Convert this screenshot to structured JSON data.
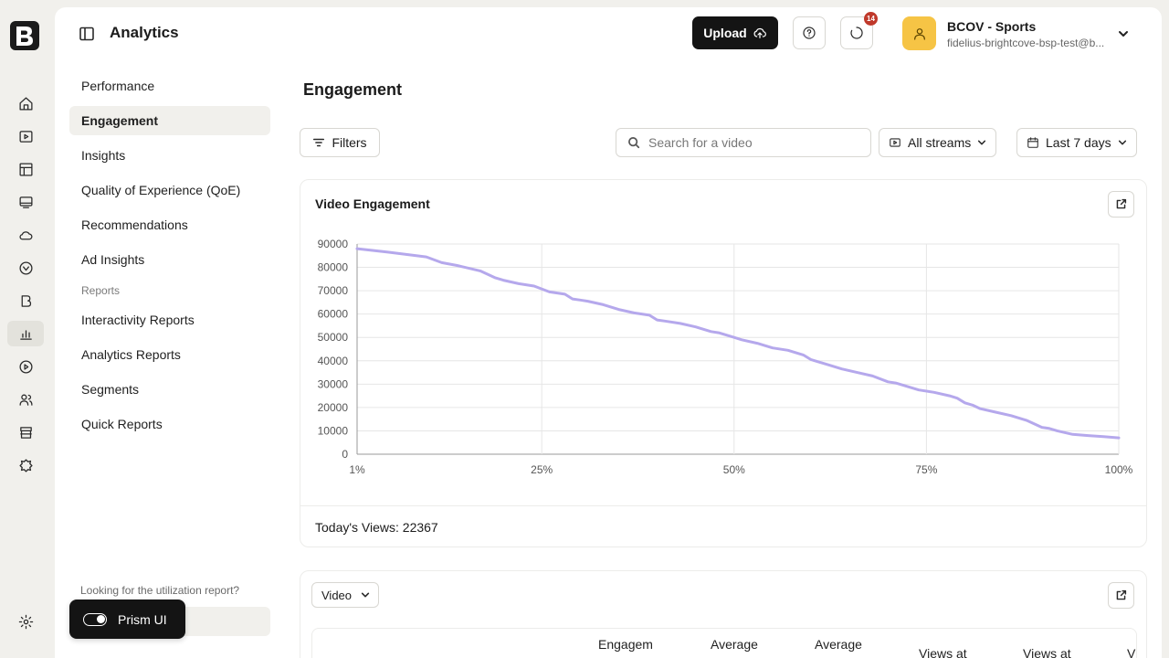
{
  "app": {
    "title": "Analytics"
  },
  "header": {
    "upload_label": "Upload",
    "notification_count": "14",
    "account": {
      "name": "BCOV - Sports",
      "email": "fidelius-brightcove-bsp-test@b..."
    }
  },
  "rail": {
    "icons": [
      "home-icon",
      "video-icon",
      "layout-icon",
      "player-icon",
      "cloud-icon",
      "live-icon",
      "brightcove-icon",
      "analytics-icon",
      "play-circle-icon",
      "users-icon",
      "store-icon",
      "puzzle-icon",
      "settings-icon"
    ],
    "active": "analytics-icon"
  },
  "subnav": {
    "items": [
      "Performance",
      "Engagement",
      "Insights",
      "Quality of Experience (QoE)",
      "Recommendations",
      "Ad Insights"
    ],
    "section_label": "Reports",
    "report_items": [
      "Interactivity Reports",
      "Analytics Reports",
      "Segments",
      "Quick Reports"
    ],
    "active": "Engagement",
    "utilization_text": "Looking for the utilization report?",
    "prism_label": "Prism UI"
  },
  "main": {
    "page_title": "Engagement",
    "filters_label": "Filters",
    "search_placeholder": "Search for a video",
    "streams_label": "All streams",
    "date_label": "Last 7 days",
    "card_title": "Video Engagement",
    "todays_views": "Today's Views: 22367",
    "video_select_label": "Video",
    "table_headers": [
      "Engagem",
      "Average",
      "Average",
      "Views at",
      "Views at",
      "V"
    ]
  },
  "colors": {
    "line": "#b5a8ec",
    "accent": "#141414",
    "avatar": "#f6c445",
    "badge": "#c0392b"
  },
  "chart_data": {
    "type": "line",
    "title": "Video Engagement",
    "xlabel": "",
    "ylabel": "",
    "x_ticks": [
      "1%",
      "25%",
      "50%",
      "75%",
      "100%"
    ],
    "y_ticks": [
      0,
      10000,
      20000,
      30000,
      40000,
      50000,
      60000,
      70000,
      80000,
      90000
    ],
    "ylim": [
      0,
      90000
    ],
    "xlim": [
      1,
      100
    ],
    "grid": true,
    "series": [
      {
        "x": [
          1,
          5,
          10,
          12,
          14,
          17,
          19,
          20,
          22,
          24,
          26,
          28,
          29,
          30,
          31,
          33,
          35,
          37,
          39,
          40,
          41,
          43,
          45,
          47,
          48,
          50,
          51,
          53,
          55,
          57,
          59,
          60,
          61,
          62,
          64,
          66,
          68,
          70,
          71,
          72,
          74,
          76,
          78,
          79,
          80,
          81,
          82,
          84,
          86,
          88,
          90,
          91,
          92,
          94,
          96,
          98,
          100
        ],
        "y": [
          88000,
          86500,
          84500,
          82000,
          80800,
          78500,
          75500,
          74500,
          73000,
          72000,
          69500,
          68500,
          66500,
          66000,
          65500,
          64000,
          62000,
          60500,
          59500,
          57500,
          57000,
          56000,
          54500,
          52500,
          52000,
          50000,
          49000,
          47500,
          45500,
          44500,
          42500,
          40500,
          39500,
          38500,
          36500,
          35000,
          33500,
          31000,
          30500,
          29500,
          27500,
          26500,
          25000,
          24000,
          22000,
          21000,
          19500,
          18000,
          16500,
          14500,
          11500,
          11000,
          10000,
          8500,
          8000,
          7500,
          7000
        ]
      }
    ]
  }
}
